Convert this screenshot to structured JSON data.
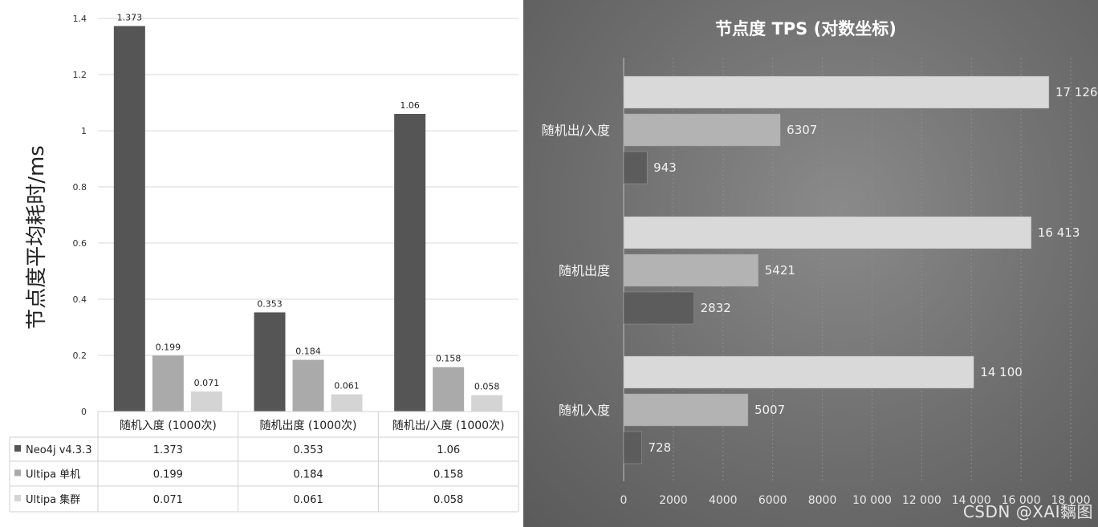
{
  "chart_data": [
    {
      "type": "bar",
      "title": "",
      "ylabel": "节点度平均耗时/ms",
      "ylim": [
        0,
        1.4
      ],
      "yticks": [
        "0",
        "0.2",
        "0.4",
        "0.6",
        "0.8",
        "1",
        "1.2",
        "1.4"
      ],
      "categories": [
        "随机入度 (1000次)",
        "随机出度 (1000次)",
        "随机出/入度 (1000次)"
      ],
      "series": [
        {
          "name": "Neo4j v4.3.3",
          "values": [
            1.373,
            0.353,
            1.06
          ],
          "labels": [
            "1.373",
            "0.353",
            "1.06"
          ],
          "color": "#555555"
        },
        {
          "name": "Ultipa 单机",
          "values": [
            0.199,
            0.184,
            0.158
          ],
          "labels": [
            "0.199",
            "0.184",
            "0.158"
          ],
          "color": "#aaaaaa"
        },
        {
          "name": "Ultipa 集群",
          "values": [
            0.071,
            0.061,
            0.058
          ],
          "labels": [
            "0.071",
            "0.061",
            "0.058"
          ],
          "color": "#d4d4d4"
        }
      ],
      "grid": true,
      "legend": "data-table"
    },
    {
      "type": "bar",
      "orientation": "horizontal",
      "title": "节点度 TPS (对数坐标)",
      "categories": [
        "随机出/入度",
        "随机出度",
        "随机入度"
      ],
      "xlim": [
        0,
        18000
      ],
      "xticks": [
        "0",
        "2000",
        "4000",
        "6000",
        "8000",
        "10 000",
        "12 000",
        "14 000",
        "16 000",
        "18 000"
      ],
      "series": [
        {
          "values": [
            17126,
            16413,
            14100
          ],
          "labels": [
            "17 126",
            "16 413",
            "14 100"
          ],
          "color": "#d9d9d9"
        },
        {
          "values": [
            6307,
            5421,
            5007
          ],
          "labels": [
            "6307",
            "5421",
            "5007"
          ],
          "color": "#b3b3b3"
        },
        {
          "values": [
            943,
            2832,
            728
          ],
          "labels": [
            "943",
            "2832",
            "728"
          ],
          "color": "#5c5c5c"
        }
      ],
      "grid": true
    }
  ],
  "watermark": "CSDN @XAI黐图"
}
